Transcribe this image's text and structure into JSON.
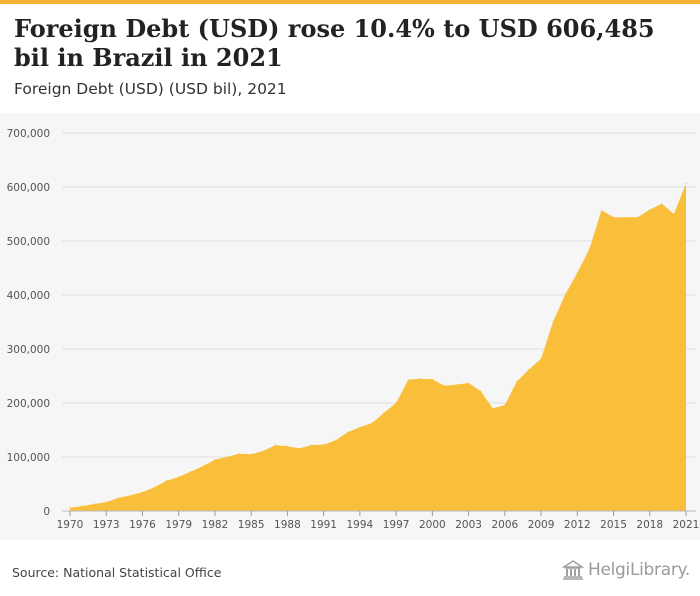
{
  "header": {
    "title": "Foreign Debt (USD) rose 10.4% to USD 606,485 bil in Brazil in 2021",
    "subtitle": "Foreign Debt (USD) (USD bil), 2021"
  },
  "footer": {
    "source": "Source: National Statistical Office",
    "brand": "HelgiLibrary."
  },
  "colors": {
    "accent": "#f5b335",
    "area": "#f9bf3b",
    "grid": "#dddddd",
    "panel": "#f6f6f6"
  },
  "chart_data": {
    "type": "area",
    "title": "Foreign Debt (USD) (USD bil), 2021",
    "xlabel": "",
    "ylabel": "",
    "ylim": [
      0,
      700000
    ],
    "yticks": [
      0,
      100000,
      200000,
      300000,
      400000,
      500000,
      600000,
      700000
    ],
    "ytick_labels": [
      "0",
      "100,000",
      "200,000",
      "300,000",
      "400,000",
      "500,000",
      "600,000",
      "700,000"
    ],
    "xtick_labels": [
      "1970",
      "1973",
      "1976",
      "1979",
      "1982",
      "1985",
      "1988",
      "1991",
      "1994",
      "1997",
      "2000",
      "2003",
      "2006",
      "2009",
      "2012",
      "2015",
      "2018",
      "2021"
    ],
    "grid": true,
    "x": [
      1970,
      1971,
      1972,
      1973,
      1974,
      1975,
      1976,
      1977,
      1978,
      1979,
      1980,
      1981,
      1982,
      1983,
      1984,
      1985,
      1986,
      1987,
      1988,
      1989,
      1990,
      1991,
      1992,
      1993,
      1994,
      1995,
      1996,
      1997,
      1998,
      1999,
      2000,
      2001,
      2002,
      2003,
      2004,
      2005,
      2006,
      2007,
      2008,
      2009,
      2010,
      2011,
      2012,
      2013,
      2014,
      2015,
      2016,
      2017,
      2018,
      2019,
      2020,
      2021
    ],
    "values": [
      6000,
      9000,
      13000,
      16500,
      24000,
      29000,
      35000,
      44000,
      56000,
      63000,
      73000,
      83000,
      95000,
      100000,
      106000,
      105000,
      111000,
      122000,
      120000,
      116000,
      122000,
      123000,
      131000,
      146000,
      155000,
      163000,
      182000,
      200000,
      243000,
      245000,
      244000,
      232000,
      234000,
      237000,
      222000,
      190000,
      196000,
      240000,
      262000,
      282000,
      351000,
      401000,
      441000,
      485000,
      557000,
      544000,
      544000,
      544000,
      558000,
      569000,
      550000,
      606485
    ]
  }
}
